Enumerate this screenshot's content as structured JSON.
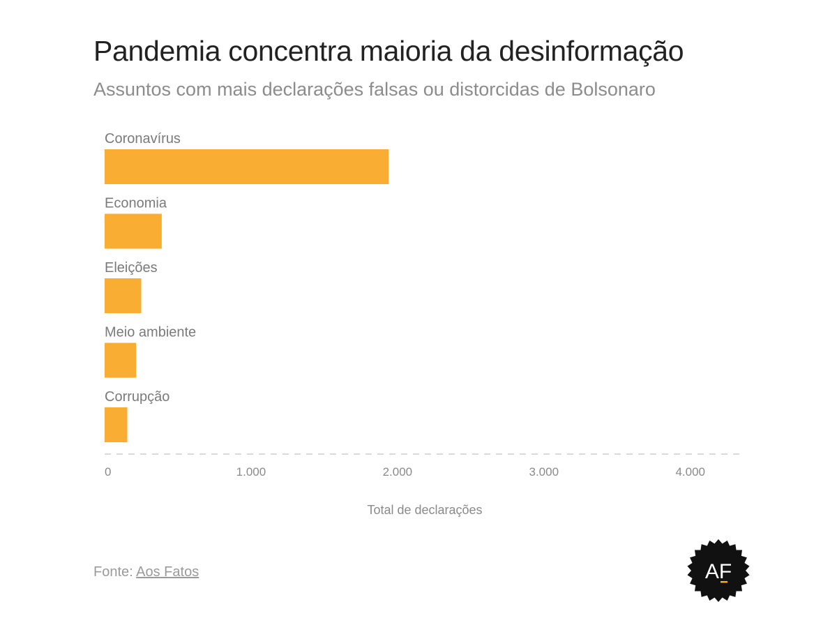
{
  "title": "Pandemia concentra maioria da desinformação",
  "subtitle": "Assuntos com mais declarações falsas ou distorcidas de Bolsonaro",
  "source": {
    "prefix": "Fonte:",
    "link_text": "Aos Fatos"
  },
  "logo": {
    "text": "AF",
    "icon": "aos-fatos-logo-icon",
    "background": "#111111",
    "accent": "#f9a825"
  },
  "colors": {
    "bar": "#f9ad33",
    "label": "#7a7a7a",
    "tick": "#8a8a8a",
    "axis": "#d9d9d9"
  },
  "chart_data": {
    "type": "bar",
    "orientation": "horizontal",
    "categories": [
      "Coronavírus",
      "Economia",
      "Eleições",
      "Meio ambiente",
      "Corrupção"
    ],
    "values": [
      1940,
      390,
      250,
      215,
      155
    ],
    "xlabel": "Total de declarações",
    "ylabel": "",
    "xlim": [
      0,
      4200
    ],
    "ticks": [
      0,
      1000,
      2000,
      3000,
      4000
    ],
    "tick_labels": [
      "0",
      "1.000",
      "2.000",
      "3.000",
      "4.000"
    ],
    "grid": false,
    "legend": "none"
  }
}
